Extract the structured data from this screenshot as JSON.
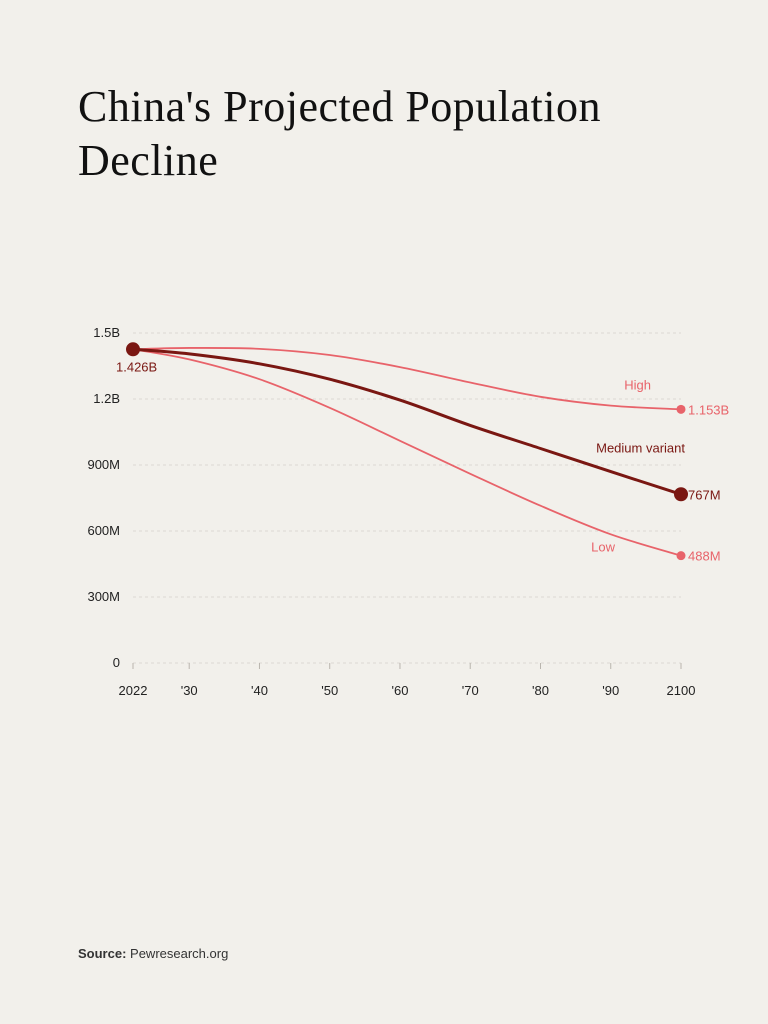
{
  "title": "China's Projected Population Decline",
  "source": {
    "label": "Source:",
    "text": "Pewresearch.org"
  },
  "colors": {
    "background": "#f2f0eb",
    "medium": "#7a1712",
    "variant": "#e8636a",
    "grid": "#dcd9d3",
    "axis_text": "#222222"
  },
  "chart_data": {
    "type": "line",
    "title": "China's Projected Population Decline",
    "xlabel": "",
    "ylabel": "",
    "xlim": [
      2022,
      2100
    ],
    "ylim": [
      0,
      1500000000
    ],
    "yticks": [
      {
        "value": 0,
        "label": "0"
      },
      {
        "value": 300000000,
        "label": "300M"
      },
      {
        "value": 600000000,
        "label": "600M"
      },
      {
        "value": 900000000,
        "label": "900M"
      },
      {
        "value": 1200000000,
        "label": "1.2B"
      },
      {
        "value": 1500000000,
        "label": "1.5B"
      }
    ],
    "xticks": [
      {
        "value": 2022,
        "label": "2022"
      },
      {
        "value": 2030,
        "label": "'30"
      },
      {
        "value": 2040,
        "label": "'40"
      },
      {
        "value": 2050,
        "label": "'50"
      },
      {
        "value": 2060,
        "label": "'60"
      },
      {
        "value": 2070,
        "label": "'70"
      },
      {
        "value": 2080,
        "label": "'80"
      },
      {
        "value": 2090,
        "label": "'90"
      },
      {
        "value": 2100,
        "label": "2100"
      }
    ],
    "start_label": "1.426B",
    "series": [
      {
        "id": "high",
        "name": "High",
        "color": "#e8636a",
        "emphasis": false,
        "x": [
          2022,
          2030,
          2040,
          2050,
          2060,
          2070,
          2080,
          2090,
          2100
        ],
        "values": [
          1426000000,
          1432000000,
          1428000000,
          1400000000,
          1345000000,
          1275000000,
          1210000000,
          1170000000,
          1153000000
        ],
        "end_label": "1.153B"
      },
      {
        "id": "medium",
        "name": "Medium variant",
        "color": "#7a1712",
        "emphasis": true,
        "x": [
          2022,
          2030,
          2040,
          2050,
          2060,
          2070,
          2080,
          2090,
          2100
        ],
        "values": [
          1426000000,
          1405000000,
          1360000000,
          1290000000,
          1195000000,
          1080000000,
          975000000,
          870000000,
          767000000
        ],
        "end_label": "767M"
      },
      {
        "id": "low",
        "name": "Low",
        "color": "#e8636a",
        "emphasis": false,
        "x": [
          2022,
          2030,
          2040,
          2050,
          2060,
          2070,
          2080,
          2090,
          2100
        ],
        "values": [
          1426000000,
          1380000000,
          1290000000,
          1160000000,
          1010000000,
          860000000,
          715000000,
          585000000,
          488000000
        ],
        "end_label": "488M"
      }
    ]
  }
}
